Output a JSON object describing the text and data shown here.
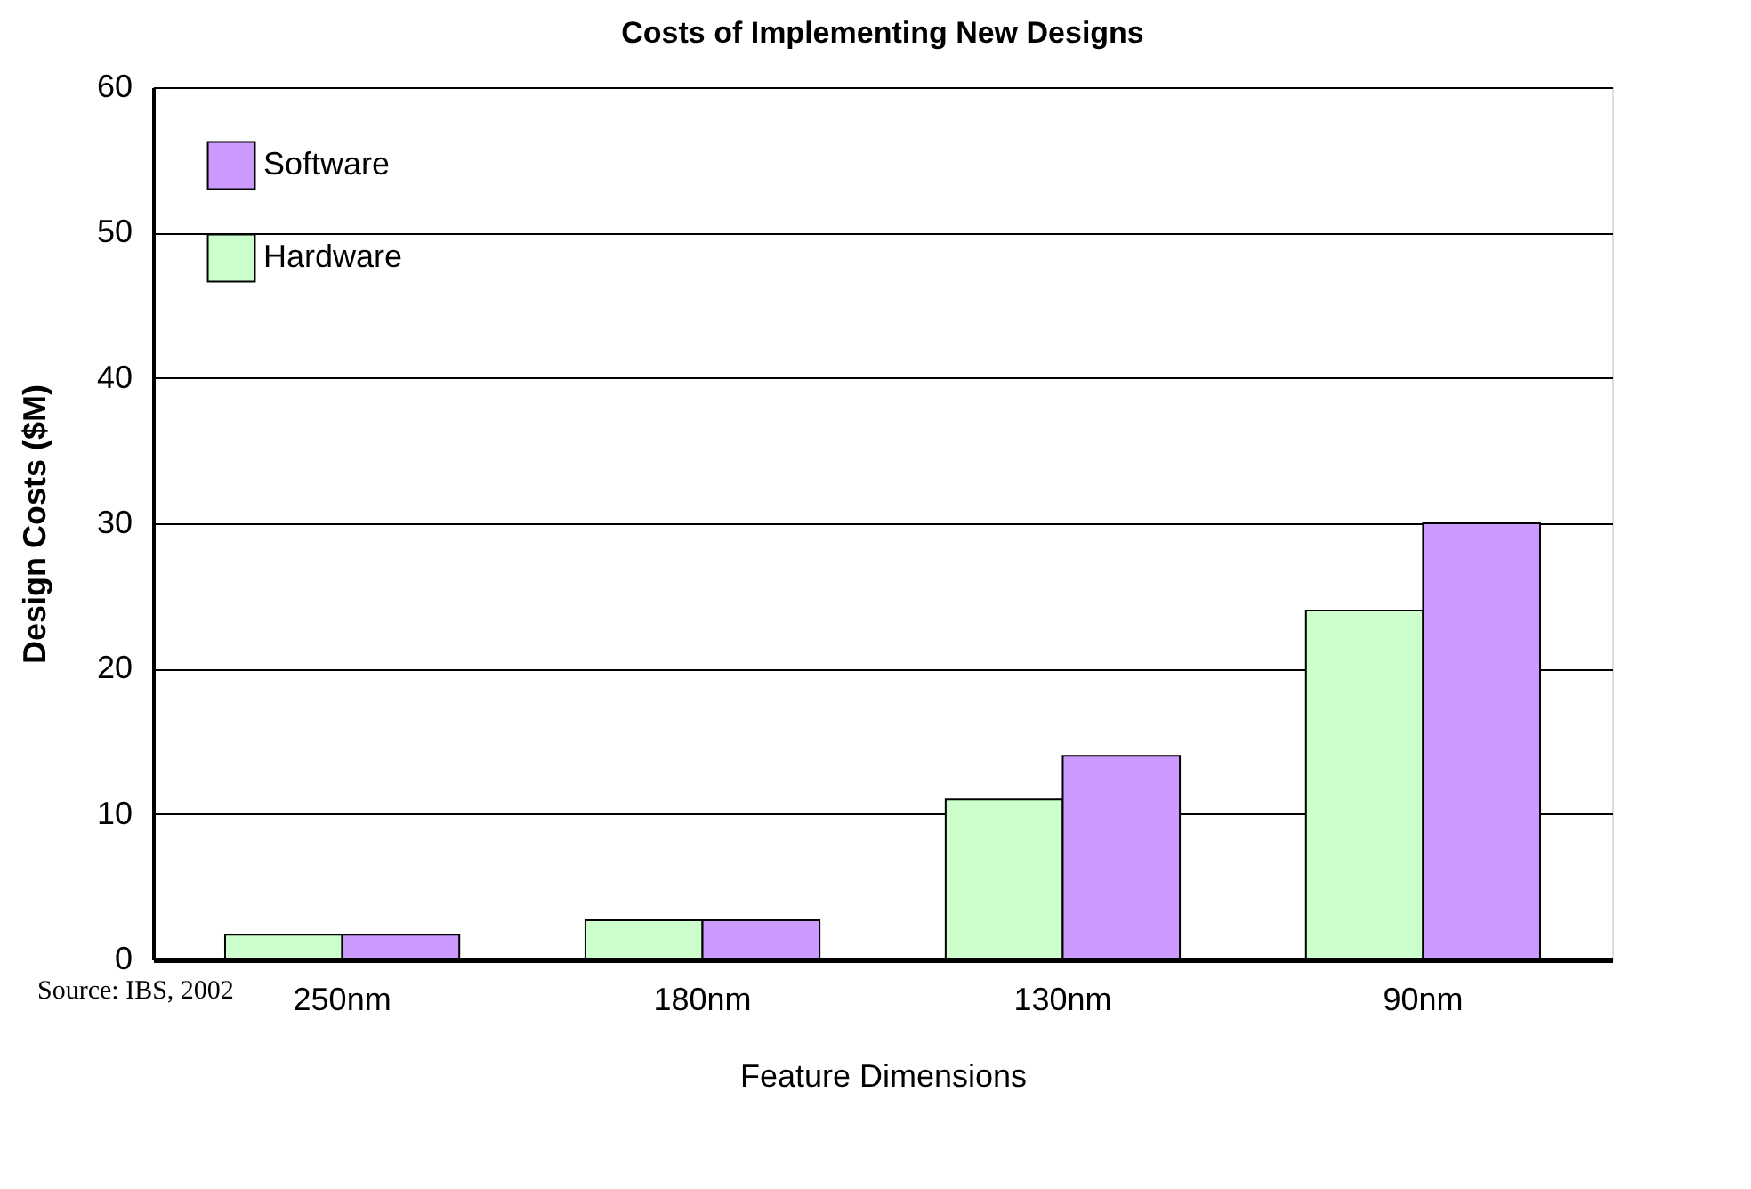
{
  "chart_data": {
    "type": "bar",
    "title": "Costs of Implementing New Designs",
    "xlabel": "Feature Dimensions",
    "ylabel": "Design Costs ($M)",
    "categories": [
      "250nm",
      "180nm",
      "130nm",
      "90nm"
    ],
    "series": [
      {
        "name": "Hardware",
        "color": "#ccffcc",
        "values": [
          1.7,
          2.7,
          11,
          24
        ]
      },
      {
        "name": "Software",
        "color": "#cc99ff",
        "values": [
          1.7,
          2.7,
          14,
          30
        ]
      }
    ],
    "ylim": [
      0,
      60
    ],
    "yticks": [
      0,
      10,
      20,
      30,
      40,
      50,
      60
    ],
    "grid": "y",
    "legend": "top left",
    "annotations": [
      "Source: IBS, 2002"
    ]
  }
}
